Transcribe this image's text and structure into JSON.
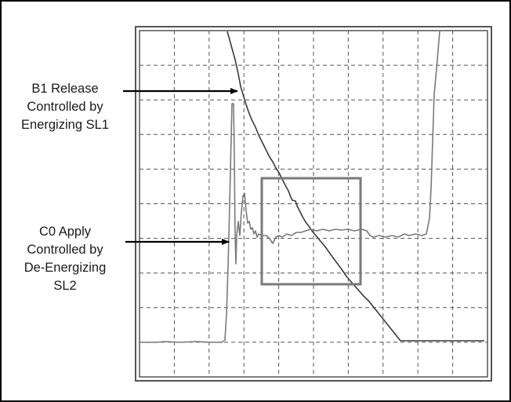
{
  "annotations": {
    "b1": {
      "lines": [
        "B1 Release",
        "Controlled by",
        "Energizing SL1"
      ]
    },
    "c0": {
      "lines": [
        "C0 Apply",
        "Controlled by",
        "De-Energizing",
        "SL2"
      ]
    }
  },
  "colors": {
    "frame": "#000000",
    "scope_border": "#555555",
    "grid": "#555555",
    "b1_trace": "#3a3a3a",
    "c0_trace": "#7a7a7a",
    "highlight_box": "#7a7a7a",
    "arrow": "#000000"
  }
}
